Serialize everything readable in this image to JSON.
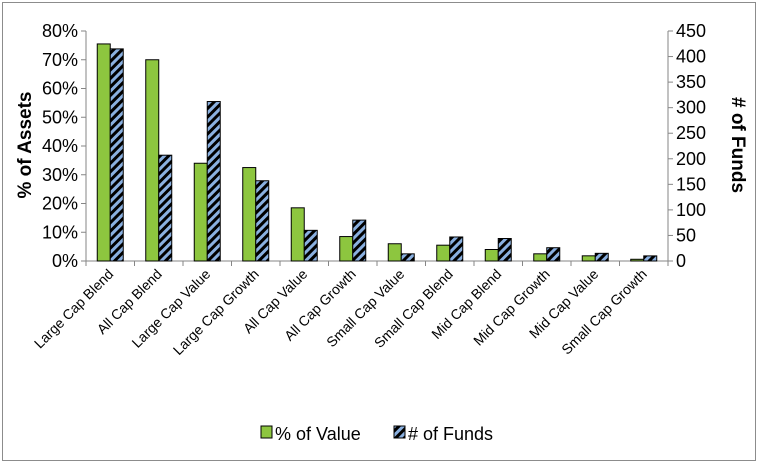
{
  "chart_data": {
    "type": "bar",
    "categories": [
      "Large Cap Blend",
      "All Cap Blend",
      "Large Cap Value",
      "Large Cap Growth",
      "All Cap Value",
      "All Cap Growth",
      "Small Cap Value",
      "Small Cap Blend",
      "Mid Cap Blend",
      "Mid Cap Growth",
      "Mid Cap Value",
      "Small Cap Growth"
    ],
    "series": [
      {
        "name": "% of Value",
        "axis": "left",
        "color": "#8dc63f",
        "values": [
          75.5,
          70.0,
          34.0,
          32.5,
          18.5,
          8.5,
          6.0,
          5.5,
          4.0,
          2.5,
          1.8,
          0.6
        ]
      },
      {
        "name": "# of Funds",
        "axis": "right",
        "color": "#8ab0e0",
        "pattern": "diagonal-stripes-black",
        "values": [
          415,
          207,
          312,
          157,
          60,
          80,
          14,
          47,
          44,
          26,
          15,
          10
        ]
      }
    ],
    "ylabel": "% of Assets",
    "y2label": "# of Funds",
    "ylim": [
      0,
      0.8
    ],
    "y2lim": [
      0,
      450
    ],
    "yticks": [
      "0%",
      "10%",
      "20%",
      "30%",
      "40%",
      "50%",
      "60%",
      "70%",
      "80%"
    ],
    "y2ticks": [
      "0",
      "50",
      "100",
      "150",
      "200",
      "250",
      "300",
      "350",
      "400",
      "450"
    ],
    "grid": false,
    "legend": "bottom"
  }
}
